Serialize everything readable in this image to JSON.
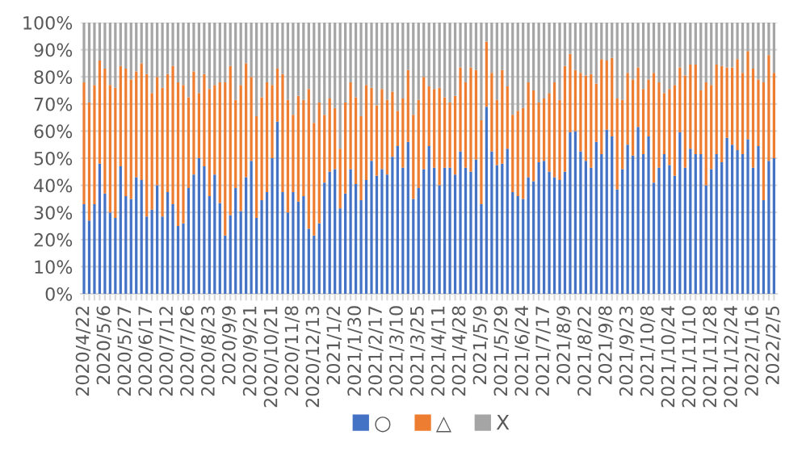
{
  "chart_data": {
    "type": "bar",
    "stacked": true,
    "categories": [
      "2020/4/22",
      null,
      null,
      null,
      "2020/5/6",
      null,
      null,
      null,
      "2020/5/27",
      null,
      null,
      null,
      "2020/6/17",
      null,
      null,
      null,
      "2020/7/12",
      null,
      null,
      null,
      "2020/7/26",
      null,
      null,
      null,
      "2020/8/23",
      null,
      null,
      null,
      "2020/9/9",
      null,
      null,
      null,
      "2020/9/21",
      null,
      null,
      null,
      "2020/10/21",
      null,
      null,
      null,
      "2020/11/8",
      null,
      null,
      null,
      "2020/12/13",
      null,
      null,
      null,
      "2021/1/2",
      null,
      null,
      null,
      "2021/1/30",
      null,
      null,
      null,
      "2021/2/17",
      null,
      null,
      null,
      "2021/3/10",
      null,
      null,
      null,
      "2021/3/25",
      null,
      null,
      null,
      "2021/4/11",
      null,
      null,
      null,
      "2021/4/28",
      null,
      null,
      null,
      "2021/5/9",
      null,
      null,
      null,
      "2021/5/29",
      null,
      null,
      null,
      "2021/6/24",
      null,
      null,
      null,
      "2021/7/17",
      null,
      null,
      null,
      "2021/8/9",
      null,
      null,
      null,
      "2021/8/22",
      null,
      null,
      null,
      "2021/9/8",
      null,
      null,
      null,
      "2021/9/23",
      null,
      null,
      null,
      "2021/10/8",
      null,
      null,
      null,
      "2021/10/24",
      null,
      null,
      null,
      "2021/11/10",
      null,
      null,
      null,
      "2021/11/28",
      null,
      null,
      null,
      "2021/12/24",
      null,
      null,
      null,
      "2022/1/16",
      null,
      null,
      null,
      "2022/2/5"
    ],
    "series": [
      {
        "name": "○",
        "color": "#4472c4",
        "values": [
          33,
          27,
          33,
          48,
          37,
          30,
          28,
          47,
          36,
          35,
          43,
          42,
          28.5,
          31,
          40,
          28.5,
          37.5,
          33,
          25,
          26,
          39,
          44,
          50,
          47,
          36,
          44,
          33.5,
          21.5,
          29,
          39,
          30.5,
          43,
          49,
          28,
          34.5,
          37.5,
          50,
          63.5,
          37.5,
          30,
          37.5,
          34,
          36,
          24,
          21.5,
          26,
          41,
          45,
          46,
          31.5,
          37,
          46,
          40.5,
          34.5,
          42,
          49,
          43.5,
          46,
          44,
          50.5,
          54.5,
          46.5,
          56,
          35,
          39,
          46,
          54.5,
          46.5,
          40,
          46.5,
          46.5,
          44,
          52.5,
          46.5,
          45,
          49.5,
          33,
          69,
          52.5,
          47.5,
          48,
          53.5,
          37.5,
          36,
          35,
          43,
          41.5,
          48.5,
          49,
          45,
          43,
          42,
          45,
          59.5,
          60,
          52.5,
          49,
          46.5,
          56,
          51.5,
          60.5,
          58,
          38.5,
          46,
          55,
          51,
          61.5,
          51.5,
          58,
          41,
          46.5,
          51.5,
          47.5,
          43.5,
          59.5,
          46.5,
          53.5,
          51.5,
          51.5,
          40,
          46,
          51.5,
          48.5,
          57.5,
          55,
          53,
          51.5,
          57,
          46.5,
          54.5,
          34.5,
          49,
          50
        ]
      },
      {
        "name": "△",
        "color": "#ed7d31",
        "values": [
          45,
          43.5,
          44,
          38,
          46,
          47,
          48,
          37,
          47,
          44,
          39,
          43,
          52.5,
          43,
          40,
          47.5,
          43.5,
          51,
          53,
          51,
          33.5,
          38,
          24,
          34,
          39.5,
          33,
          44.5,
          56.5,
          55,
          32.5,
          46.5,
          42,
          31,
          37.5,
          38,
          40.5,
          27,
          19.5,
          43.5,
          41.5,
          28.5,
          39,
          35.5,
          51.5,
          41.5,
          44.5,
          25,
          27,
          22.5,
          22,
          33.5,
          32,
          32,
          31,
          35,
          27,
          26,
          29.5,
          27.5,
          24,
          13,
          25.5,
          26.5,
          31,
          32.5,
          34,
          22,
          29,
          36,
          26,
          24,
          29,
          31,
          31.5,
          38.5,
          33,
          31,
          24,
          29,
          24,
          34.5,
          23,
          28.5,
          31.5,
          33.5,
          35,
          33.5,
          22,
          23,
          29,
          35,
          29.5,
          39,
          29,
          22.5,
          29,
          31.5,
          34.5,
          21.5,
          35,
          25.5,
          29,
          33.5,
          25.5,
          26.5,
          28,
          22,
          24,
          21,
          40.5,
          31.5,
          22.5,
          28,
          33.5,
          24,
          34,
          31,
          33,
          23.5,
          38,
          31,
          33,
          35.5,
          26,
          28.5,
          33.5,
          30,
          32.5,
          36.5,
          24.5,
          43.5,
          39,
          31.5
        ]
      },
      {
        "name": "X",
        "color": "#a5a5a5",
        "values": [
          22,
          29.5,
          23,
          14,
          17,
          23,
          24,
          16,
          17,
          21,
          18,
          15,
          19,
          26,
          20,
          24,
          19,
          16,
          22,
          23,
          27.5,
          18,
          26,
          19,
          24.5,
          23,
          22,
          22,
          16,
          28.5,
          23,
          15,
          20,
          34.5,
          27.5,
          22,
          23,
          17,
          19,
          28.5,
          34,
          27,
          28.5,
          24.5,
          37,
          29.5,
          34,
          28,
          31.5,
          46.5,
          29.5,
          22,
          27.5,
          34.5,
          23,
          24,
          30.5,
          24.5,
          28.5,
          25.5,
          32.5,
          28,
          17.5,
          34,
          28.5,
          20,
          23.5,
          24.5,
          24,
          27.5,
          29.5,
          27,
          16.5,
          22,
          16.5,
          17.5,
          36,
          7,
          18.5,
          28.5,
          17.5,
          23.5,
          34,
          32.5,
          31.5,
          22,
          25,
          29.5,
          28,
          26,
          22,
          28.5,
          16,
          11.5,
          17.5,
          18.5,
          19.5,
          19,
          22.5,
          13.5,
          14,
          13,
          28,
          28.5,
          18.5,
          21,
          16.5,
          24.5,
          21,
          18.5,
          22,
          26,
          24.5,
          23,
          16.5,
          19.5,
          15.5,
          15.5,
          25,
          22,
          23,
          15.5,
          16,
          16.5,
          16.5,
          13.5,
          18.5,
          10.5,
          17,
          21,
          22,
          12,
          18.5
        ]
      }
    ],
    "ylim": [
      0,
      100
    ],
    "yticks": [
      {
        "value": 0,
        "label": "0%"
      },
      {
        "value": 10,
        "label": "10%"
      },
      {
        "value": 20,
        "label": "20%"
      },
      {
        "value": 30,
        "label": "30%"
      },
      {
        "value": 40,
        "label": "40%"
      },
      {
        "value": 50,
        "label": "50%"
      },
      {
        "value": 60,
        "label": "60%"
      },
      {
        "value": 70,
        "label": "70%"
      },
      {
        "value": 80,
        "label": "80%"
      },
      {
        "value": 90,
        "label": "90%"
      },
      {
        "value": 100,
        "label": "100%"
      }
    ],
    "grid": "y",
    "legend": "bottom"
  }
}
